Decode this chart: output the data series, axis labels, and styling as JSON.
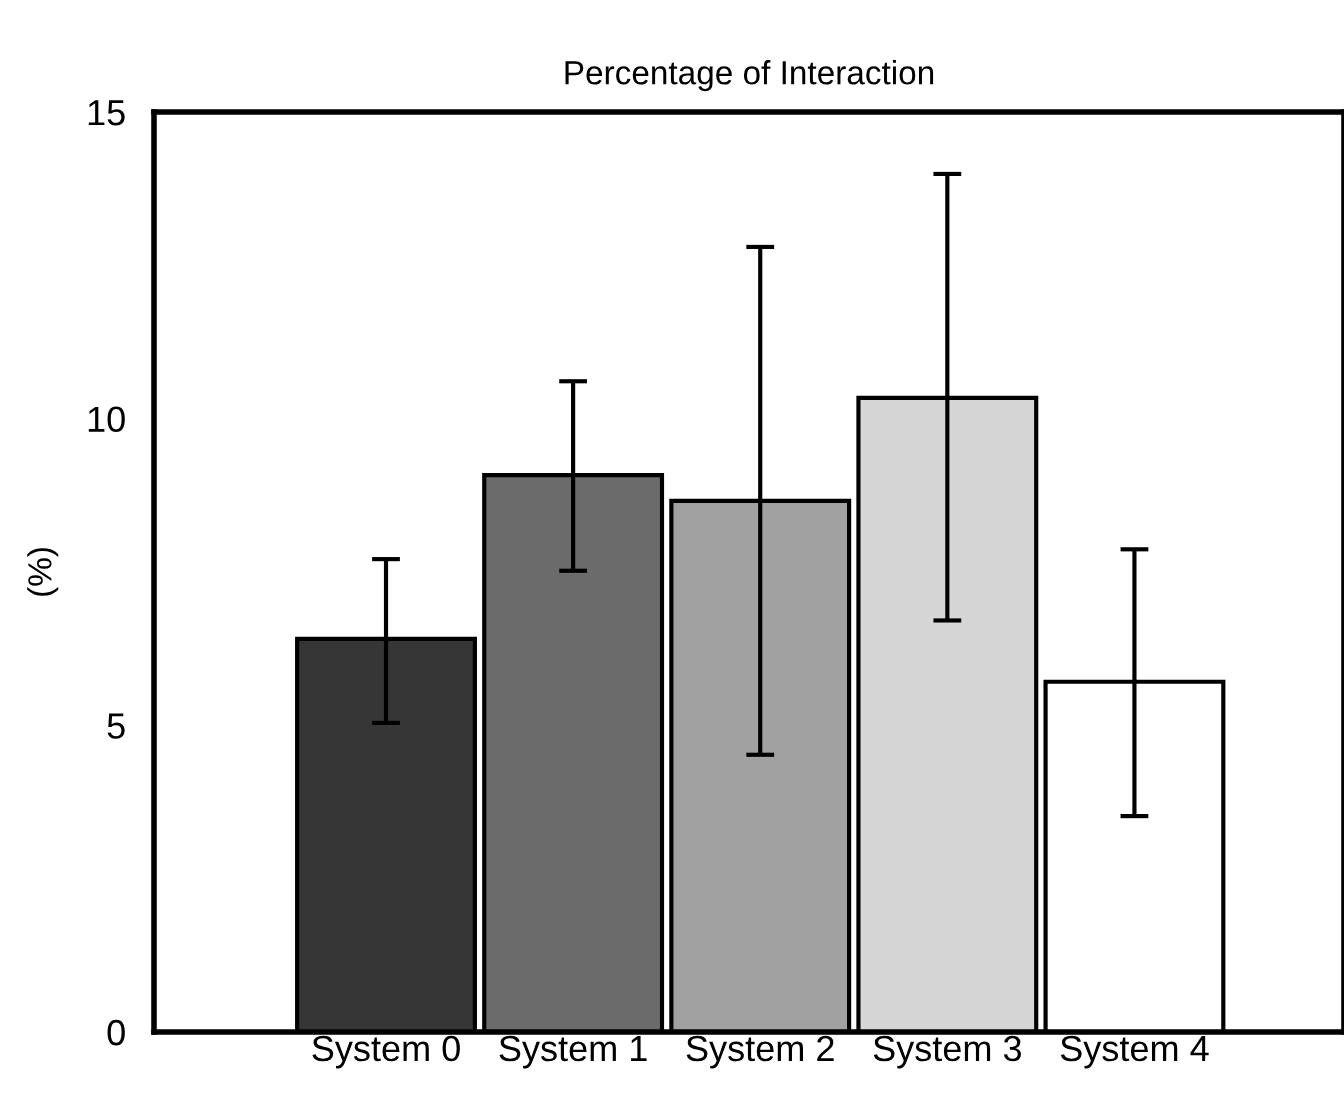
{
  "chart_data": {
    "type": "bar",
    "title": "Percentage of Interaction",
    "ylabel": "(%)",
    "categories": [
      "System 0",
      "System 1",
      "System 2",
      "System 3",
      "System 4"
    ],
    "values": [
      6.41,
      9.08,
      8.66,
      10.34,
      5.71
    ],
    "colors": [
      "#363636",
      "#6b6b6b",
      "#a1a1a1",
      "#d6d6d6",
      "#ffffff"
    ],
    "errors": [
      [
        5.04,
        7.71
      ],
      [
        7.52,
        10.61
      ],
      [
        4.52,
        12.8
      ],
      [
        6.71,
        13.99
      ],
      [
        3.52,
        7.87
      ]
    ],
    "ylim": [
      0,
      15
    ],
    "yticks": [
      0,
      5,
      10,
      15
    ],
    "grid": false,
    "legend": false
  }
}
